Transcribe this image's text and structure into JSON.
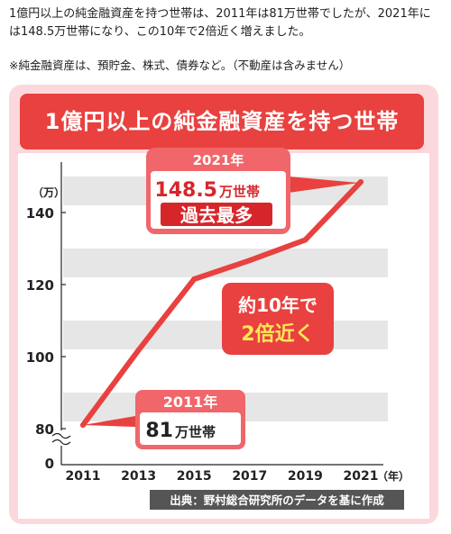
{
  "intro_text": "1億円以上の純金融資産を持つ世帯は、2011年は81万世帯でしたが、2021年には148.5万世帯になり、この10年で2倍近く増えました。",
  "note_text": "※純金融資産は、預貯金、株式、債券など。（不動産は含みません）",
  "colors": {
    "accent": "#e8413f",
    "panel_bg": "#fbd8dc",
    "band": "#e6e6e6",
    "line": "#e8413f"
  },
  "chart_data": {
    "type": "line",
    "title": "1億円以上の純金融資産を持つ世帯",
    "y_unit": "（万）",
    "x_unit": "（年）",
    "x": [
      2011,
      2013,
      2015,
      2017,
      2019,
      2021
    ],
    "x_tick_labels": [
      "2011",
      "2013",
      "2015",
      "2017",
      "2019",
      "2021"
    ],
    "y_tick_labels": [
      "80",
      "100",
      "120",
      "140"
    ],
    "y_zero_label": "0",
    "y_axis_break": true,
    "ylim": [
      80,
      150
    ],
    "series": [
      {
        "values": [
          81,
          101.8,
          121.5,
          126.7,
          132.4,
          148.5
        ]
      }
    ],
    "grid": "horizontal bands",
    "annotations": {
      "start": {
        "year": "2011年",
        "value_num": "81",
        "value_unit": "万世帯"
      },
      "end": {
        "year": "2021年",
        "value_num": "148.5",
        "value_unit": "万世帯",
        "badge": "過去最多"
      },
      "middle": {
        "line1": "約10年で",
        "line2": "2倍近く"
      }
    },
    "source": "出典：野村総合研究所のデータを基に作成"
  }
}
